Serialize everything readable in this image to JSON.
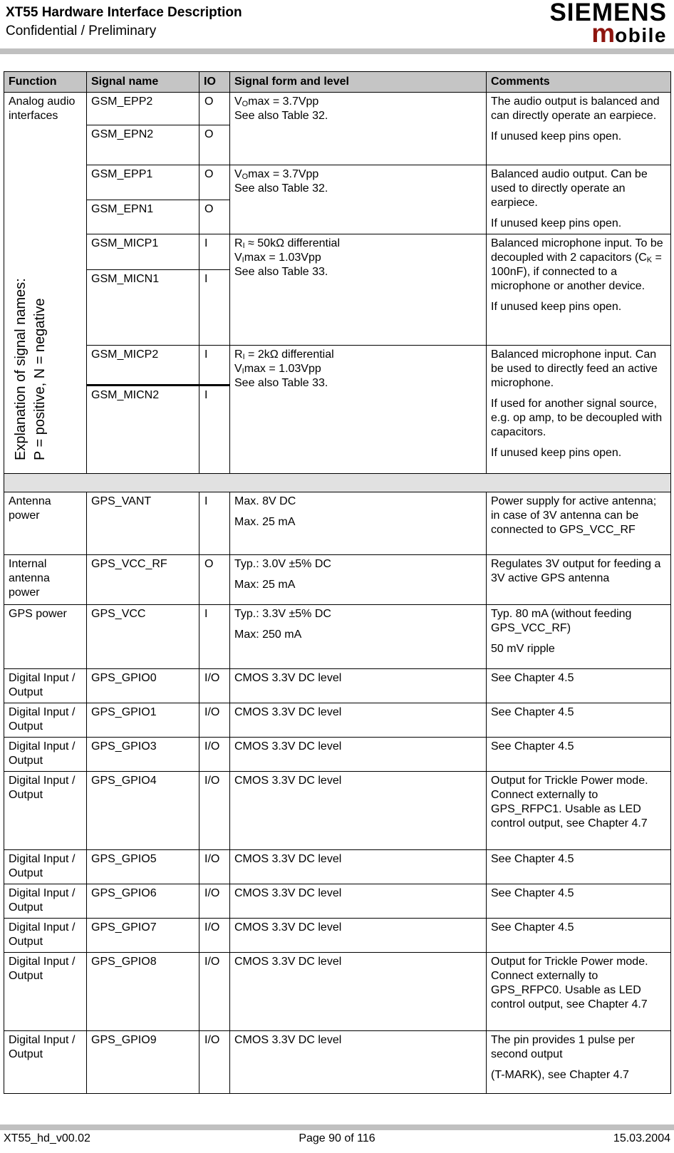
{
  "colors": {
    "brand_accent": "#8e150f",
    "bar_gray": "#c0c0c0",
    "header_row_gray": "#c5c5c5",
    "separator_gray": "#e1e1e1"
  },
  "header": {
    "title": "XT55 Hardware Interface Description",
    "subtitle": "Confidential / Preliminary",
    "brand": {
      "name": "SIEMENS",
      "sub_initial": "m",
      "sub_rest": "obile"
    }
  },
  "table": {
    "headers": [
      "Function",
      "Signal name",
      "IO",
      "Signal form and level",
      "Comments"
    ],
    "audio_section": {
      "function_label": "Analog audio interfaces",
      "side_note": "Explanation of signal names:\nP = positive, N = negative",
      "groups": [
        {
          "rows": [
            {
              "signal": "GSM_EPP2",
              "io": "O"
            },
            {
              "signal": "GSM_EPN2",
              "io": "O"
            }
          ],
          "form": [
            "V[O]max = 3.7Vpp\nSee also Table 32."
          ],
          "comments": [
            "The audio output is balanced and can directly operate an earpiece.",
            "If unused keep pins open."
          ]
        },
        {
          "rows": [
            {
              "signal": "GSM_EPP1",
              "io": "O"
            },
            {
              "signal": "GSM_EPN1",
              "io": "O"
            }
          ],
          "form": [
            "V[O]max = 3.7Vpp\nSee also Table 32."
          ],
          "comments": [
            "Balanced audio output. Can be used to directly operate an earpiece.",
            "If unused keep pins open."
          ]
        },
        {
          "rows": [
            {
              "signal": "GSM_MICP1",
              "io": "I"
            },
            {
              "signal": "GSM_MICN1",
              "io": "I"
            }
          ],
          "form": [
            "R[I] ≈ 50kΩ differential\nV[I]max = 1.03Vpp\nSee also Table 33."
          ],
          "comments": [
            "Balanced microphone input. To be decoupled with 2 capacitors (C[K] = 100nF), if connected to a microphone or another device.",
            "If unused keep pins open."
          ]
        },
        {
          "rows": [
            {
              "signal": "GSM_MICP2",
              "io": "I"
            },
            {
              "signal": "GSM_MICN2",
              "io": "I"
            }
          ],
          "form": [
            "R[I] = 2kΩ differential\nV[I]max = 1.03Vpp\nSee also Table 33."
          ],
          "comments": [
            "Balanced microphone input. Can be used to directly feed an active microphone.",
            "If used for another signal source, e.g. op amp, to be decoupled with capacitors.",
            "If unused keep pins open."
          ]
        }
      ]
    },
    "gps_rows": [
      {
        "function": "Antenna power",
        "signal": "GPS_VANT",
        "io": "I",
        "form": [
          "Max. 8V DC",
          "Max. 25 mA"
        ],
        "comments": [
          "Power supply for active antenna; in case of 3V antenna can be connected to GPS_VCC_RF"
        ]
      },
      {
        "function": "Internal antenna power",
        "signal": "GPS_VCC_RF",
        "io": "O",
        "form": [
          "Typ.: 3.0V ±5% DC",
          "Max: 25 mA"
        ],
        "comments": [
          "Regulates 3V output for feeding a 3V active GPS antenna"
        ]
      },
      {
        "function": "GPS power",
        "signal": "GPS_VCC",
        "io": "I",
        "form": [
          "Typ.: 3.3V ±5% DC",
          "Max: 250 mA"
        ],
        "comments": [
          "Typ. 80 mA (without feeding GPS_VCC_RF)",
          "50 mV ripple"
        ]
      },
      {
        "function": "Digital Input / Output",
        "signal": "GPS_GPIO0",
        "io": "I/O",
        "form": [
          "CMOS 3.3V DC level"
        ],
        "comments": [
          "See Chapter 4.5"
        ]
      },
      {
        "function": "Digital Input / Output",
        "signal": "GPS_GPIO1",
        "io": "I/O",
        "form": [
          "CMOS 3.3V DC level"
        ],
        "comments": [
          "See Chapter 4.5"
        ]
      },
      {
        "function": "Digital Input / Output",
        "signal": "GPS_GPIO3",
        "io": "I/O",
        "form": [
          "CMOS 3.3V DC level"
        ],
        "comments": [
          "See Chapter 4.5"
        ]
      },
      {
        "function": "Digital Input / Output",
        "signal": "GPS_GPIO4",
        "io": "I/O",
        "form": [
          "CMOS 3.3V DC level"
        ],
        "comments": [
          "Output for Trickle Power mode. Connect externally to GPS_RFPC1. Usable as LED control output, see Chapter 4.7"
        ]
      },
      {
        "function": "Digital Input / Output",
        "signal": "GPS_GPIO5",
        "io": "I/O",
        "form": [
          "CMOS 3.3V DC level"
        ],
        "comments": [
          "See Chapter 4.5"
        ]
      },
      {
        "function": "Digital Input / Output",
        "signal": "GPS_GPIO6",
        "io": "I/O",
        "form": [
          "CMOS 3.3V DC level"
        ],
        "comments": [
          "See Chapter 4.5"
        ]
      },
      {
        "function": "Digital Input / Output",
        "signal": "GPS_GPIO7",
        "io": "I/O",
        "form": [
          "CMOS 3.3V DC level"
        ],
        "comments": [
          "See Chapter 4.5"
        ]
      },
      {
        "function": "Digital Input / Output",
        "signal": "GPS_GPIO8",
        "io": "I/O",
        "form": [
          "CMOS 3.3V DC level"
        ],
        "comments": [
          "Output for Trickle Power mode. Connect externally to GPS_RFPC0. Usable as LED control output, see Chapter 4.7"
        ]
      },
      {
        "function": "Digital Input / Output",
        "signal": "GPS_GPIO9",
        "io": "I/O",
        "form": [
          "CMOS 3.3V DC level"
        ],
        "comments": [
          "The pin provides 1 pulse per second output",
          "(T-MARK), see Chapter 4.7"
        ]
      }
    ]
  },
  "footer": {
    "doc_id": "XT55_hd_v00.02",
    "page": "Page 90 of 116",
    "date": "15.03.2004"
  }
}
